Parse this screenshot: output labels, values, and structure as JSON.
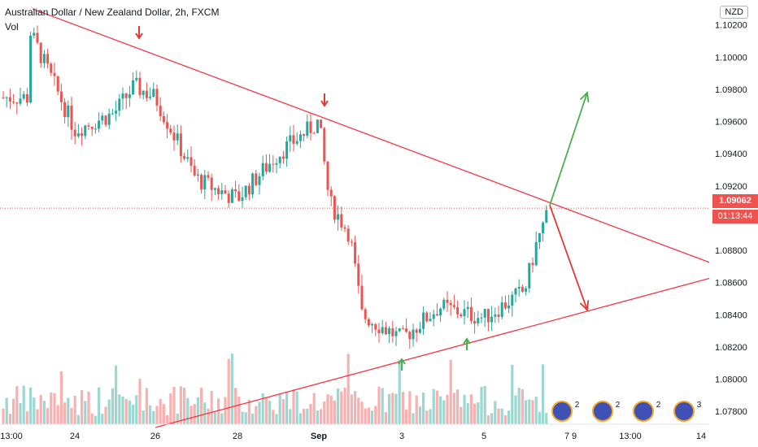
{
  "header": {
    "title": "Australian Dollar / New Zealand Dollar, 2h, FXCM",
    "volume_label": "Vol",
    "currency": "NZD"
  },
  "price_tag": {
    "price": "1.09062",
    "countdown": "01:13:44",
    "color": "#ef5350"
  },
  "colors": {
    "up": "#26a69a",
    "down": "#ef5350",
    "trendline": "#f23645",
    "bull_arrow": "#4caf50",
    "bear_arrow": "#e53935"
  },
  "chart_data": {
    "type": "candlestick",
    "title": "Australian Dollar / New Zealand Dollar, 2h, FXCM",
    "y_axis": {
      "ticks": [
        "1.10200",
        "1.10000",
        "1.09800",
        "1.09600",
        "1.09400",
        "1.09200",
        "1.09000",
        "1.08800",
        "1.08600",
        "1.08400",
        "1.08200",
        "1.08000",
        "1.07800"
      ],
      "range": [
        1.0772,
        1.1034
      ]
    },
    "x_axis": {
      "ticks": [
        "13:00",
        "24",
        "26",
        "28",
        "Sep",
        "3",
        "5",
        "7",
        "9",
        "13:00",
        "14"
      ]
    },
    "price_path": [
      {
        "x": "13:00",
        "y": 1.0975
      },
      {
        "x": "23-mid",
        "y": 1.1018
      },
      {
        "x": "24",
        "y": 1.0955
      },
      {
        "x": "25",
        "y": 1.0965
      },
      {
        "x": "25-mid",
        "y": 1.0982
      },
      {
        "x": "26",
        "y": 1.0975
      },
      {
        "x": "27",
        "y": 1.0925
      },
      {
        "x": "27-mid",
        "y": 1.0918
      },
      {
        "x": "28",
        "y": 1.0912
      },
      {
        "x": "29",
        "y": 1.094
      },
      {
        "x": "Sep",
        "y": 1.096
      },
      {
        "x": "Sep-mid",
        "y": 1.091
      },
      {
        "x": "2",
        "y": 1.089
      },
      {
        "x": "2-mid",
        "y": 1.084
      },
      {
        "x": "3",
        "y": 1.0825
      },
      {
        "x": "4",
        "y": 1.0845
      },
      {
        "x": "5",
        "y": 1.0838
      },
      {
        "x": "6",
        "y": 1.0855
      },
      {
        "x": "7",
        "y": 1.087
      },
      {
        "x": "8",
        "y": 1.0885
      },
      {
        "x": "8-end",
        "y": 1.0906
      }
    ],
    "annotations": {
      "upper_trendline": [
        {
          "x": "23",
          "y": 1.103
        },
        {
          "x": "14+",
          "y": 1.0872
        }
      ],
      "lower_trendline": [
        {
          "x": "26",
          "y": 1.077
        },
        {
          "x": "14+",
          "y": 1.0863
        }
      ],
      "current_price_line": 1.09062,
      "bullish_arrow": [
        {
          "x": "8-end",
          "y": 1.0908
        },
        {
          "x": "10",
          "y": 1.0978
        }
      ],
      "bearish_arrow": [
        {
          "x": "8-end",
          "y": 1.0908
        },
        {
          "x": "10",
          "y": 1.0843
        }
      ],
      "resistance_touch_markers": 2,
      "support_touch_markers": 2
    }
  },
  "events": [
    {
      "count": "2"
    },
    {
      "count": "2"
    },
    {
      "count": "2"
    },
    {
      "count": "3"
    }
  ]
}
